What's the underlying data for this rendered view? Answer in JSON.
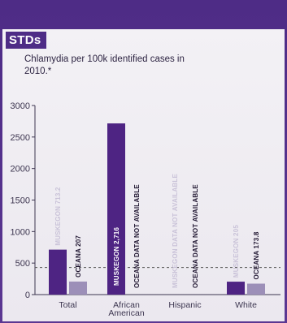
{
  "header": {
    "title": "STDs",
    "subtitle": "Chlamydia per 100k identified cases in 2010.*"
  },
  "chart_data": {
    "type": "bar",
    "categories": [
      "Total",
      "African American",
      "Hispanic",
      "White"
    ],
    "category_lines": [
      [
        "Total"
      ],
      [
        "African",
        "American"
      ],
      [
        "Hispanic"
      ],
      [
        "White"
      ]
    ],
    "series": [
      {
        "name": "Muskegon",
        "color": "#4e2483",
        "values": [
          713.2,
          2716,
          null,
          205
        ],
        "labels": [
          "MUSKEGON 713.2",
          "MUSKEGON 2,716",
          "MUSKEGON DATA NOT AVAILABLE",
          "MUSKEGON 205"
        ]
      },
      {
        "name": "Oceana",
        "color": "#9c8fb8",
        "values": [
          207,
          null,
          null,
          173.8
        ],
        "labels": [
          "OCEANA 207",
          "OCEANA DATA NOT AVAILABLE",
          "OCEANA DATA NOT AVAILABLE",
          "OCEANA 173.8"
        ]
      }
    ],
    "yticks": [
      0,
      500,
      1000,
      1500,
      2000,
      2500,
      3000
    ],
    "ylim": [
      0,
      3000
    ],
    "reference_line": 430,
    "grid": false,
    "colors": {
      "reference_line": "#555555",
      "label_light": "#c9c2d8",
      "label_dark": "#1f1530"
    }
  }
}
